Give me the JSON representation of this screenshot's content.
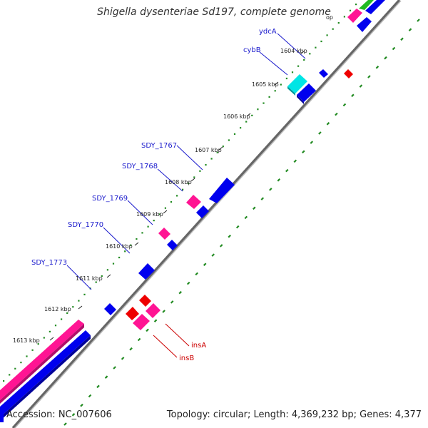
{
  "title": "Shigella dysenteriae Sd197, complete genome",
  "footer": {
    "accession": "Accession: NC_007606",
    "topology": "Topology: circular; Length: 4,369,232 bp; Genes: 4,377"
  },
  "colors": {
    "forward_cds": "#ff1493",
    "reverse_cds": "#0000ee",
    "rna": "#ee0000",
    "highlight": "#00e5e5",
    "label_blue": "#1a1acc",
    "label_red": "#cc0000",
    "backbone": "#777777",
    "gc_dots": "#228b22"
  },
  "ticks": [
    {
      "label": "1604 kbp"
    },
    {
      "label": "1605 kbp"
    },
    {
      "label": "1606 kbp"
    },
    {
      "label": "1607 kbp"
    },
    {
      "label": "1608 kbp"
    },
    {
      "label": "1609 kbp"
    },
    {
      "label": "1610 kbp"
    },
    {
      "label": "1611 kbp"
    },
    {
      "label": "1612 kbp"
    },
    {
      "label": "1613 kbp"
    }
  ],
  "gene_labels": [
    {
      "name": "ydcA"
    },
    {
      "name": "cybB"
    },
    {
      "name": "SDY_1767"
    },
    {
      "name": "SDY_1768"
    },
    {
      "name": "SDY_1769"
    },
    {
      "name": "SDY_1770"
    },
    {
      "name": "SDY_1773"
    },
    {
      "name": "insA"
    },
    {
      "name": "insB"
    }
  ]
}
